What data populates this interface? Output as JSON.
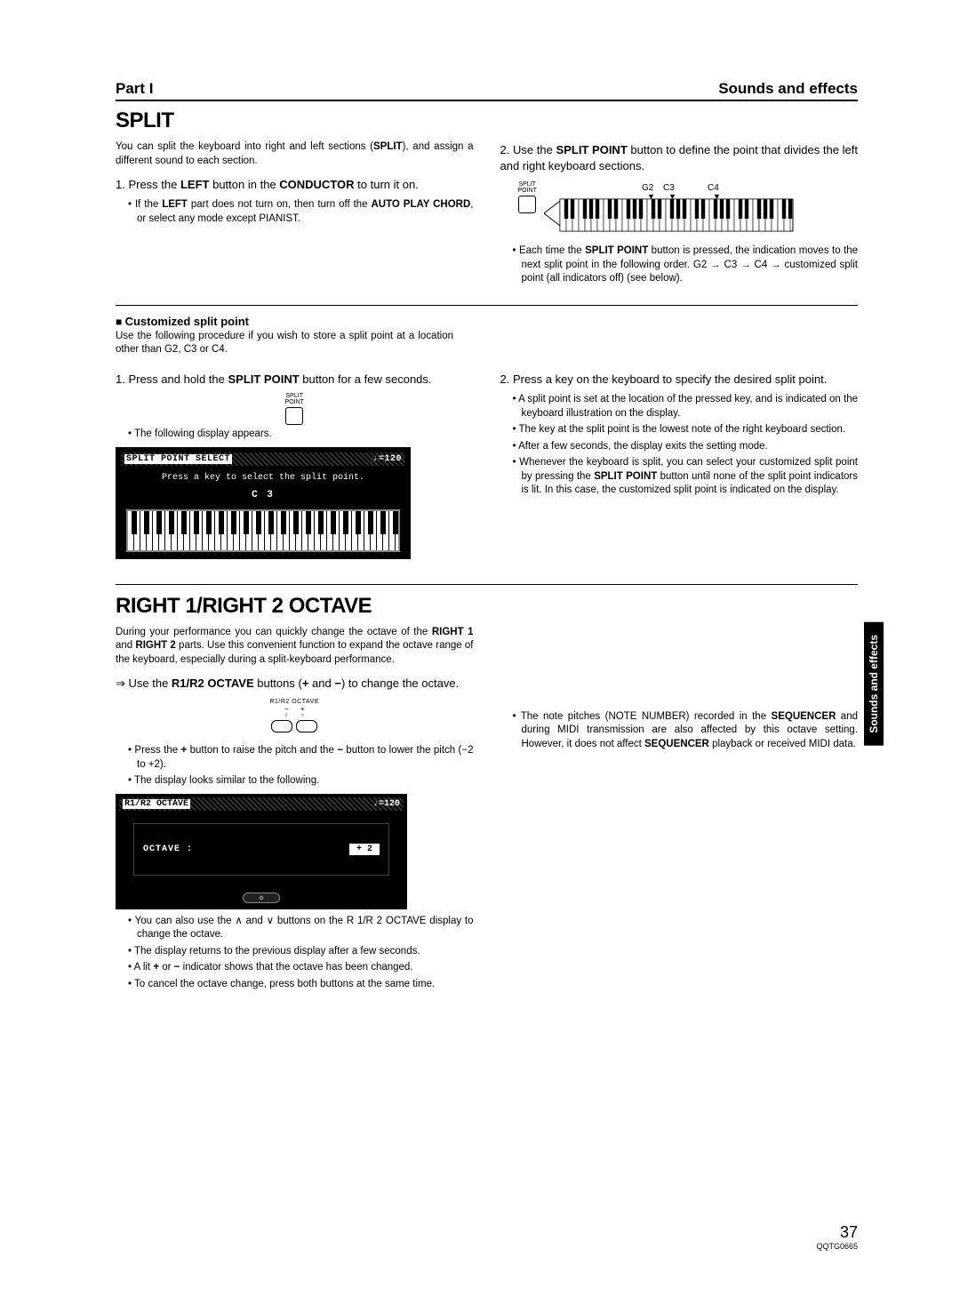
{
  "header": {
    "part": "Part I",
    "section": "Sounds and effects"
  },
  "split": {
    "title": "SPLIT",
    "intro_html": "You can split the keyboard into right and left sections (<b>SPLIT</b>), and assign a different sound to each section.",
    "step1_html": "1. Press the <b>LEFT</b> button in the <b>CONDUCTOR</b> to turn it on.",
    "step1_bullet_html": "If the <b>LEFT</b> part does not turn on, then turn off the <b>AUTO PLAY CHORD</b>, or select any mode except PIANIST.",
    "step2_html": "2. Use the <b>SPLIT POINT</b> button to define the point that divides the left and right keyboard sections.",
    "split_btn_label": "SPLIT\nPOINT",
    "markers": {
      "g2": "G2",
      "c3": "C3",
      "c4": "C4"
    },
    "step2_bullet_html": "Each time the <b>SPLIT POINT</b> button is pressed, the indication moves to the next split point in the following order. G2 → C3 → C4 → customized split point (all indicators off) (see below)."
  },
  "custom": {
    "heading": "Customized split point",
    "intro": "Use the following procedure if you wish to store a split point at a location other than G2, C3 or C4.",
    "step1_html": "1. Press and hold the <b>SPLIT POINT</b> button for a few seconds.",
    "btn_label": "SPLIT\nPOINT",
    "following_display": "The following display appears.",
    "lcd": {
      "title": "SPLIT POINT SELECT",
      "tempo": "♩=120",
      "msg": "Press a key to select the split point.",
      "val": "C  3"
    },
    "step2_html": "2. Press a key on the keyboard to specify the desired split point.",
    "r_bullets": [
      "A split point is set at the location of the pressed key, and is indicated on the keyboard illustration on the display.",
      "The key at the split point is the lowest note of the right keyboard section.",
      "After a few seconds, the display exits the setting mode.",
      "Whenever the keyboard is split, you can select your customized split point by pressing the <b>SPLIT POINT</b> button until none of the split point indicators is lit. In this case, the customized split point is indicated on the display."
    ]
  },
  "octave": {
    "title": "RIGHT 1/RIGHT 2 OCTAVE",
    "intro_html": "During your performance you can quickly change the octave of the <b>RIGHT 1</b> and <b>RIGHT 2</b> parts. Use this convenient function to expand the octave range of the keyboard, especially during a split-keyboard performance.",
    "arrow_html": "⇒ Use the <b>R1/R2 OCTAVE</b> buttons (<b>+</b> and <b>−</b>) to change the octave.",
    "btn_label": "R1/R2 OCTAVE",
    "signs": "−       +",
    "l_bullets": [
      "Press the <b>+</b> button to raise the pitch and the <b>−</b> button to lower the pitch (−2 to +2).",
      "The display looks similar to the following."
    ],
    "lcd2": {
      "title": "R1/R2 OCTAVE",
      "tempo": "♩=120",
      "label": "OCTAVE :",
      "val": "+ 2",
      "btm": "◇"
    },
    "l_bullets2": [
      "You can also use the ∧ and ∨ buttons on the R 1/R 2 OCTAVE display to change the octave.",
      "The display returns to the previous display after a few seconds.",
      "A lit <b>+</b> or <b>−</b> indicator shows that the octave has been changed.",
      "To cancel the octave change, press both buttons at the same time."
    ],
    "r_bullet_html": "The note pitches (NOTE NUMBER) recorded in the <b>SEQUENCER</b> and during MIDI transmission are also affected by this octave setting. However, it does not affect <b>SEQUENCER</b> playback or received MIDI data."
  },
  "side_tab": "Sounds and effects",
  "footer": {
    "page": "37",
    "code": "QQTG0665"
  }
}
